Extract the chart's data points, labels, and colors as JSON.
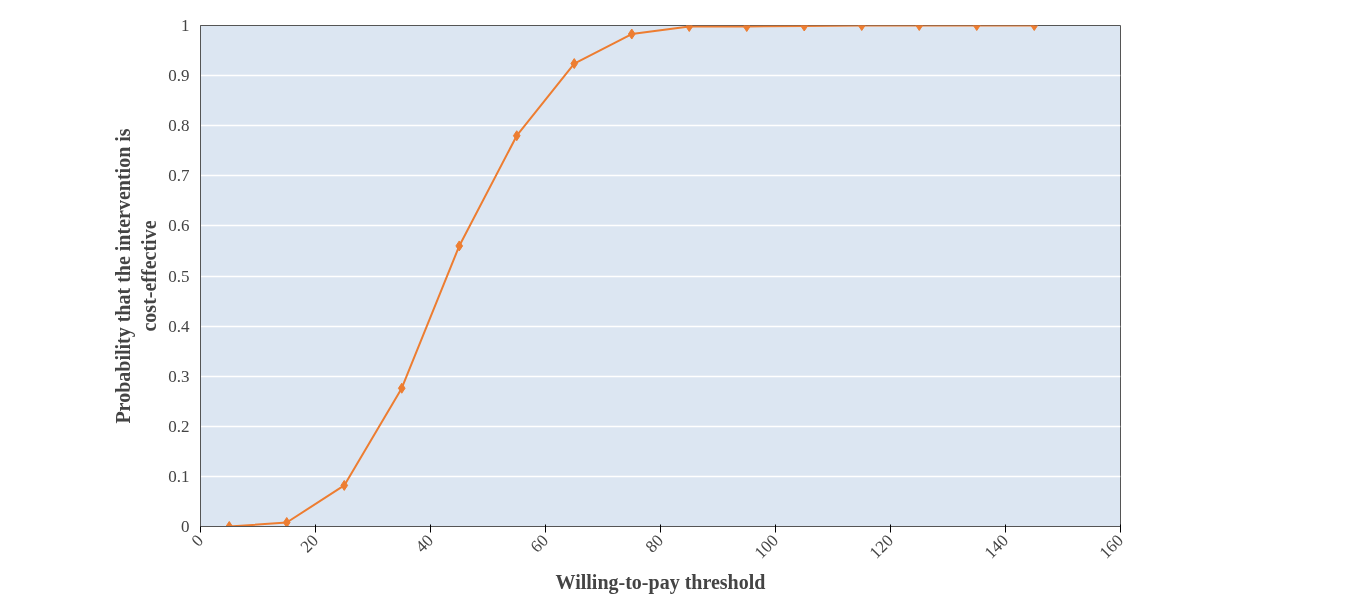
{
  "chart_data": {
    "type": "line",
    "xlabel": "Willing-to-pay threshold",
    "ylabel": "Probability that the intervention is cost-effective",
    "x": [
      5,
      15,
      25,
      35,
      45,
      55,
      65,
      75,
      85,
      95,
      105,
      115,
      125,
      135,
      145
    ],
    "series": [
      {
        "color": "#ed7d31",
        "values": [
          0,
          0.008,
          0.082,
          0.276,
          0.56,
          0.78,
          0.924,
          0.983,
          0.998,
          0.998,
          0.999,
          1,
          1,
          1,
          1
        ]
      }
    ],
    "xlim": [
      0,
      160
    ],
    "xticks": [
      0,
      20,
      40,
      60,
      80,
      100,
      120,
      140,
      160
    ],
    "ylim": [
      0,
      1
    ],
    "yticks": [
      0,
      0.1,
      0.2,
      0.3,
      0.4,
      0.5,
      0.6,
      0.7,
      0.8,
      0.9,
      1
    ],
    "grid": "y",
    "marker": "diamond",
    "line_style": "solid"
  }
}
